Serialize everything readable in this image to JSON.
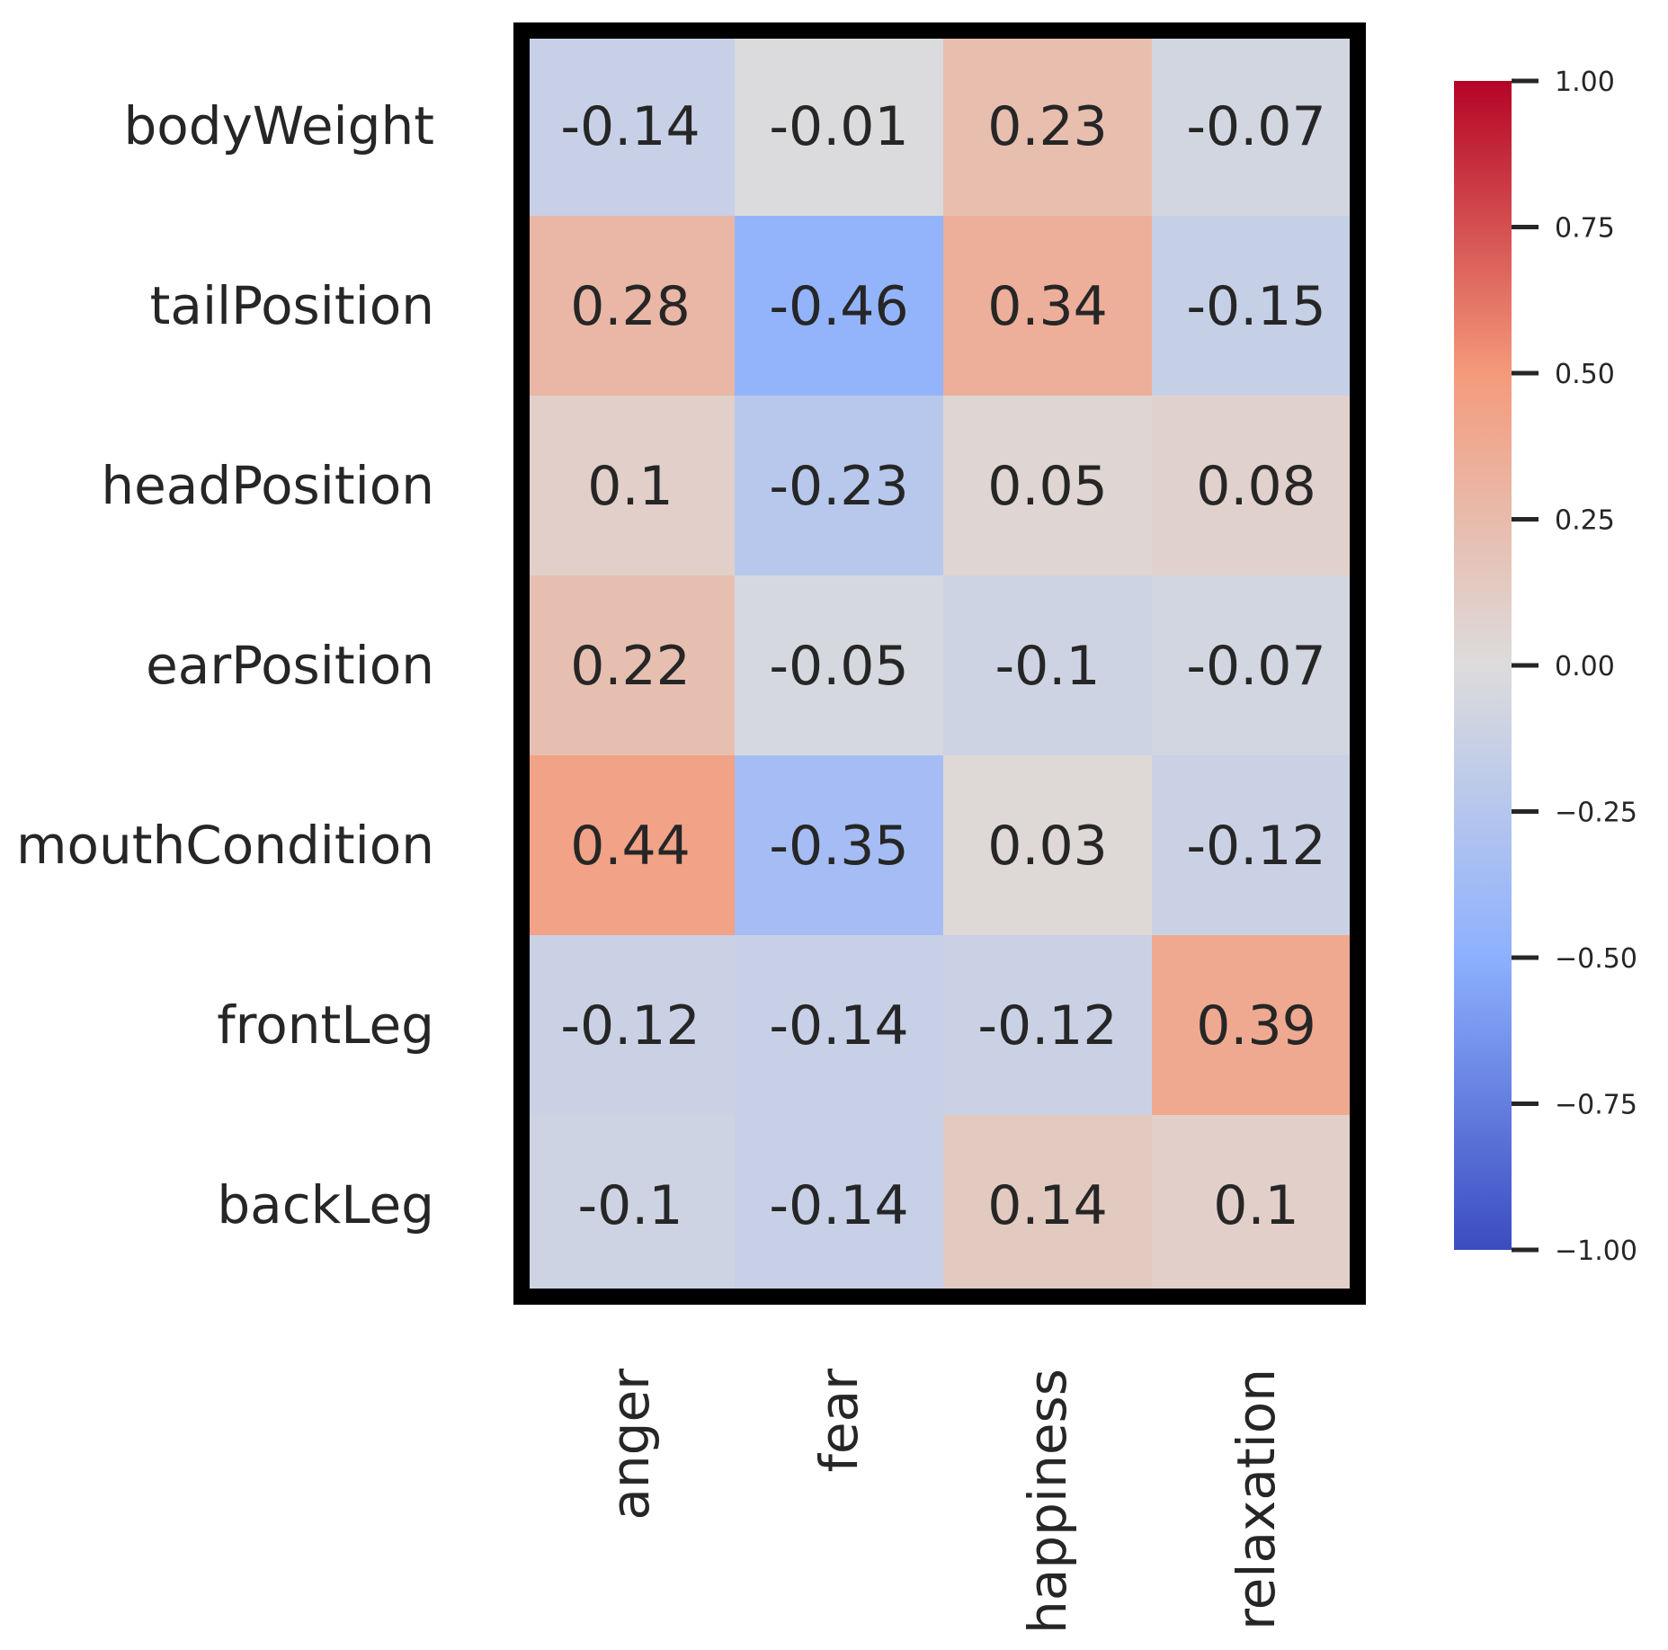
{
  "chart_data": {
    "type": "heatmap",
    "title": "",
    "xlabel": "",
    "ylabel": "",
    "rows": [
      "bodyWeight",
      "tailPosition",
      "headPosition",
      "earPosition",
      "mouthCondition",
      "frontLeg",
      "backLeg"
    ],
    "columns": [
      "anger",
      "fear",
      "happiness",
      "relaxation"
    ],
    "values": [
      [
        -0.14,
        -0.01,
        0.23,
        -0.07
      ],
      [
        0.28,
        -0.46,
        0.34,
        -0.15
      ],
      [
        0.1,
        -0.23,
        0.05,
        0.08
      ],
      [
        0.22,
        -0.05,
        -0.1,
        -0.07
      ],
      [
        0.44,
        -0.35,
        0.03,
        -0.12
      ],
      [
        -0.12,
        -0.14,
        -0.12,
        0.39
      ],
      [
        -0.1,
        -0.14,
        0.14,
        0.1
      ]
    ],
    "value_labels": [
      [
        "-0.14",
        "-0.01",
        "0.23",
        "-0.07"
      ],
      [
        "0.28",
        "-0.46",
        "0.34",
        "-0.15"
      ],
      [
        "0.1",
        "-0.23",
        "0.05",
        "0.08"
      ],
      [
        "0.22",
        "-0.05",
        "-0.1",
        "-0.07"
      ],
      [
        "0.44",
        "-0.35",
        "0.03",
        "-0.12"
      ],
      [
        "-0.12",
        "-0.14",
        "-0.12",
        "0.39"
      ],
      [
        "-0.1",
        "-0.14",
        "0.14",
        "0.1"
      ]
    ],
    "colormap": "coolwarm",
    "vmin": -1.0,
    "vmax": 1.0,
    "colorbar": {
      "ticks": [
        1.0,
        0.75,
        0.5,
        0.25,
        0.0,
        -0.25,
        -0.5,
        -0.75,
        -1.0
      ],
      "tick_labels": [
        "1.00",
        "0.75",
        "0.50",
        "0.25",
        "0.00",
        "−0.25",
        "−0.50",
        "−0.75",
        "−1.00"
      ],
      "placement": "right"
    },
    "frame_color": "#000000",
    "colormap_stops": [
      {
        "v": -1.0,
        "color": "#3b4cc0"
      },
      {
        "v": -0.5,
        "color": "#8db0fe"
      },
      {
        "v": 0.0,
        "color": "#dddcdc"
      },
      {
        "v": 0.5,
        "color": "#f49a7b"
      },
      {
        "v": 1.0,
        "color": "#b40426"
      }
    ]
  }
}
